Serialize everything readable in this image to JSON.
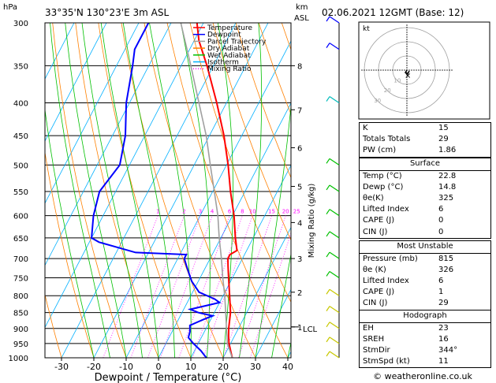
{
  "header": {
    "left_unit": "hPa",
    "location": "33°35'N  130°23'E  3m  ASL",
    "right_unit_km": "km",
    "right_unit_asl": "ASL",
    "datetime": "02.06.2021  12GMT  (Base: 12)"
  },
  "footer": {
    "copyright": "© weatheronline.co.uk"
  },
  "chart_data": {
    "type": "line",
    "subtype": "skew-T log-p",
    "xlabel": "Dewpoint / Temperature (°C)",
    "ylabel_right": "Mixing Ratio (g/kg)",
    "x_ticks": [
      -30,
      -20,
      -10,
      0,
      10,
      20,
      30,
      40
    ],
    "pressure_ticks": [
      300,
      350,
      400,
      450,
      500,
      550,
      600,
      650,
      700,
      750,
      800,
      850,
      900,
      950,
      1000
    ],
    "km_ticks": [
      {
        "label": "8",
        "p": 350
      },
      {
        "label": "7",
        "p": 410
      },
      {
        "label": "6",
        "p": 470
      },
      {
        "label": "5",
        "p": 540
      },
      {
        "label": "4",
        "p": 615
      },
      {
        "label": "3",
        "p": 700
      },
      {
        "label": "2",
        "p": 790
      },
      {
        "label": "1",
        "p": 895
      }
    ],
    "lcl": {
      "label": "LCL",
      "p": 895
    },
    "mixing_ratio_labels": [
      "1",
      "2",
      "3",
      "4",
      "6",
      "8",
      "10",
      "15",
      "20",
      "25"
    ],
    "legend": [
      {
        "name": "Temperature",
        "color": "#ff0000",
        "style": "solid"
      },
      {
        "name": "Dewpoint",
        "color": "#0000ff",
        "style": "solid"
      },
      {
        "name": "Parcel Trajectory",
        "color": "#a0a0a0",
        "style": "solid"
      },
      {
        "name": "Dry Adiabat",
        "color": "#ff8000",
        "style": "solid"
      },
      {
        "name": "Wet Adiabat",
        "color": "#00c000",
        "style": "solid"
      },
      {
        "name": "Isotherm",
        "color": "#00b0ff",
        "style": "solid"
      },
      {
        "name": "Mixing Ratio",
        "color": "#ff00ff",
        "style": "dotted"
      }
    ],
    "series": [
      {
        "name": "Temperature",
        "color": "#ff0000",
        "points": [
          [
            1000,
            22.8
          ],
          [
            950,
            19.5
          ],
          [
            925,
            18.2
          ],
          [
            900,
            17.0
          ],
          [
            850,
            15.0
          ],
          [
            800,
            12.0
          ],
          [
            750,
            8.8
          ],
          [
            720,
            6.8
          ],
          [
            700,
            5.5
          ],
          [
            690,
            5.5
          ],
          [
            680,
            7.0
          ],
          [
            650,
            4.5
          ],
          [
            600,
            0.5
          ],
          [
            550,
            -4.5
          ],
          [
            500,
            -9.5
          ],
          [
            450,
            -15.5
          ],
          [
            400,
            -23.0
          ],
          [
            350,
            -32.0
          ],
          [
            320,
            -38.5
          ],
          [
            300,
            -42.0
          ]
        ]
      },
      {
        "name": "Dewpoint",
        "color": "#0000ff",
        "points": [
          [
            1000,
            14.8
          ],
          [
            975,
            12.0
          ],
          [
            950,
            8.5
          ],
          [
            930,
            6.0
          ],
          [
            910,
            5.5
          ],
          [
            890,
            4.5
          ],
          [
            870,
            8.0
          ],
          [
            860,
            10.0
          ],
          [
            850,
            5.0
          ],
          [
            840,
            2.0
          ],
          [
            820,
            10.0
          ],
          [
            810,
            8.0
          ],
          [
            790,
            2.0
          ],
          [
            760,
            -2.0
          ],
          [
            740,
            -4.0
          ],
          [
            720,
            -6.0
          ],
          [
            700,
            -8.0
          ],
          [
            690,
            -8.0
          ],
          [
            685,
            -24.0
          ],
          [
            660,
            -37.0
          ],
          [
            650,
            -40.0
          ],
          [
            600,
            -43.0
          ],
          [
            550,
            -45.0
          ],
          [
            500,
            -43.0
          ],
          [
            450,
            -46.0
          ],
          [
            400,
            -51.0
          ],
          [
            350,
            -55.0
          ],
          [
            330,
            -57.0
          ],
          [
            300,
            -57.0
          ]
        ]
      },
      {
        "name": "Parcel Trajectory",
        "color": "#a0a0a0",
        "points": [
          [
            1000,
            22.8
          ],
          [
            950,
            19.0
          ],
          [
            900,
            16.3
          ],
          [
            850,
            13.5
          ],
          [
            800,
            10.5
          ],
          [
            750,
            7.0
          ],
          [
            700,
            3.5
          ],
          [
            650,
            -0.5
          ],
          [
            600,
            -4.5
          ],
          [
            550,
            -9.5
          ],
          [
            500,
            -15.0
          ],
          [
            450,
            -21.0
          ],
          [
            400,
            -28.5
          ],
          [
            350,
            -37.0
          ],
          [
            300,
            -47.0
          ]
        ]
      }
    ]
  },
  "hodograph": {
    "unit_label": "kt",
    "ring_labels": [
      "10",
      "20",
      "30"
    ],
    "storm_marker": "×"
  },
  "indices": {
    "top": [
      {
        "label": "K",
        "value": "15"
      },
      {
        "label": "Totals Totals",
        "value": "29"
      },
      {
        "label": "PW (cm)",
        "value": "1.86"
      }
    ],
    "surface": {
      "title": "Surface",
      "rows": [
        {
          "label": "Temp (°C)",
          "value": "22.8"
        },
        {
          "label": "Dewp (°C)",
          "value": "14.8"
        },
        {
          "label": "θe(K)",
          "value": "325"
        },
        {
          "label": "Lifted Index",
          "value": "6"
        },
        {
          "label": "CAPE (J)",
          "value": "0"
        },
        {
          "label": "CIN (J)",
          "value": "0"
        }
      ]
    },
    "most_unstable": {
      "title": "Most Unstable",
      "rows": [
        {
          "label": "Pressure (mb)",
          "value": "815"
        },
        {
          "label": "θe (K)",
          "value": "326"
        },
        {
          "label": "Lifted Index",
          "value": "6"
        },
        {
          "label": "CAPE (J)",
          "value": "1"
        },
        {
          "label": "CIN (J)",
          "value": "29"
        }
      ]
    },
    "hodograph": {
      "title": "Hodograph",
      "rows": [
        {
          "label": "EH",
          "value": "23"
        },
        {
          "label": "SREH",
          "value": "16"
        },
        {
          "label": "StmDir",
          "value": "344°"
        },
        {
          "label": "StmSpd (kt)",
          "value": "11"
        }
      ]
    }
  }
}
